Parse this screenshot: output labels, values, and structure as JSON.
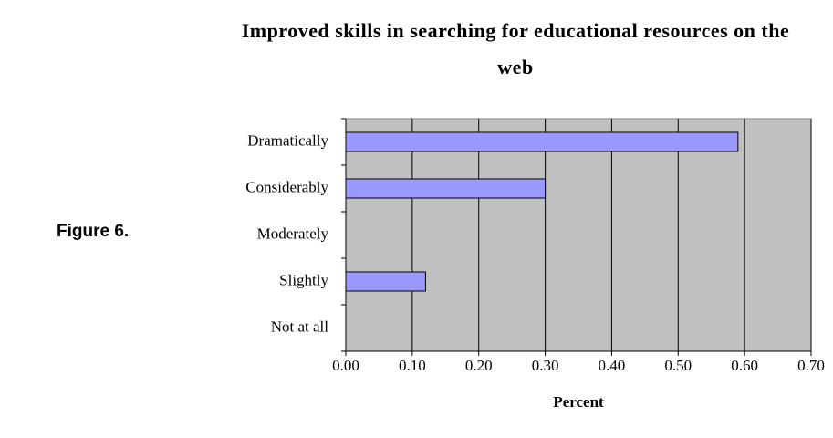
{
  "figure_label": "Figure 6.",
  "chart_data": {
    "type": "bar",
    "orientation": "horizontal",
    "title": "Improved skills in searching for educational resources on the web",
    "x_label": "Percent",
    "categories": [
      "Dramatically",
      "Considerably",
      "Moderately",
      "Slightly",
      "Not at all"
    ],
    "values": [
      0.59,
      0.3,
      0,
      0.12,
      0
    ],
    "color": "#9999ff",
    "xlim": [
      0,
      0.7
    ],
    "xticks": [
      {
        "value": 0,
        "label": "0.00"
      },
      {
        "value": 0.1,
        "label": "0.10"
      },
      {
        "value": 0.2,
        "label": "0.20"
      },
      {
        "value": 0.3,
        "label": "0.30"
      },
      {
        "value": 0.4,
        "label": "0.40"
      },
      {
        "value": 0.5,
        "label": "0.50"
      },
      {
        "value": 0.6,
        "label": "0.60"
      },
      {
        "value": 0.7,
        "label": "0.70"
      }
    ],
    "grid": true
  }
}
